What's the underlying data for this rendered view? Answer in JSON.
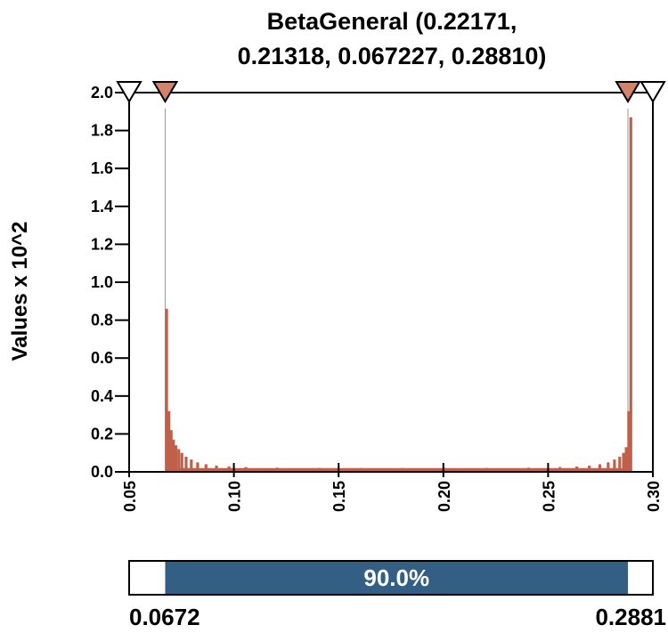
{
  "chart_data": {
    "type": "bar",
    "title_lines": [
      "BetaGeneral (0.22171,",
      "0.21318, 0.067227, 0.28810)"
    ],
    "ylabel": "Values x 10^2",
    "xlabel": "",
    "xlim": [
      0.05,
      0.3
    ],
    "ylim": [
      0.0,
      2.0
    ],
    "x_ticks": [
      "0.05",
      "0.10",
      "0.15",
      "0.20",
      "0.25",
      "0.30"
    ],
    "y_ticks": [
      "0.0",
      "0.2",
      "0.4",
      "0.6",
      "0.8",
      "1.0",
      "1.2",
      "1.4",
      "1.6",
      "1.8",
      "2.0"
    ],
    "bar_color": "#c0604a",
    "marker_fill_color": "#d4826b",
    "band_color": "#345f85",
    "distribution": {
      "name": "BetaGeneral",
      "alpha1": 0.22171,
      "alpha2": 0.21318,
      "min": 0.067227,
      "max": 0.2881
    },
    "bins": [
      {
        "x": 0.0672,
        "y": 0.86
      },
      {
        "x": 0.0683,
        "y": 0.32
      },
      {
        "x": 0.0694,
        "y": 0.22
      },
      {
        "x": 0.0705,
        "y": 0.17
      },
      {
        "x": 0.0716,
        "y": 0.14
      },
      {
        "x": 0.073,
        "y": 0.12
      },
      {
        "x": 0.0745,
        "y": 0.1
      },
      {
        "x": 0.0765,
        "y": 0.08
      },
      {
        "x": 0.079,
        "y": 0.065
      },
      {
        "x": 0.082,
        "y": 0.05
      },
      {
        "x": 0.086,
        "y": 0.04
      },
      {
        "x": 0.091,
        "y": 0.033
      },
      {
        "x": 0.097,
        "y": 0.028
      },
      {
        "x": 0.105,
        "y": 0.025
      },
      {
        "x": 0.12,
        "y": 0.022
      },
      {
        "x": 0.14,
        "y": 0.021
      },
      {
        "x": 0.16,
        "y": 0.02
      },
      {
        "x": 0.18,
        "y": 0.02
      },
      {
        "x": 0.2,
        "y": 0.02
      },
      {
        "x": 0.22,
        "y": 0.021
      },
      {
        "x": 0.24,
        "y": 0.022
      },
      {
        "x": 0.255,
        "y": 0.025
      },
      {
        "x": 0.263,
        "y": 0.028
      },
      {
        "x": 0.269,
        "y": 0.033
      },
      {
        "x": 0.274,
        "y": 0.04
      },
      {
        "x": 0.278,
        "y": 0.05
      },
      {
        "x": 0.281,
        "y": 0.065
      },
      {
        "x": 0.2835,
        "y": 0.08
      },
      {
        "x": 0.2853,
        "y": 0.1
      },
      {
        "x": 0.2866,
        "y": 0.13
      },
      {
        "x": 0.2878,
        "y": 0.32
      },
      {
        "x": 0.2888,
        "y": 1.87
      }
    ],
    "bin_width": 0.0011,
    "markers_outer": [
      0.05,
      0.3
    ],
    "markers_inner": [
      0.0672,
      0.2881
    ],
    "band": {
      "lo": 0.0672,
      "hi": 0.2881,
      "label": "90.0%"
    },
    "range_labels": [
      "0.0672",
      "0.2881"
    ]
  }
}
